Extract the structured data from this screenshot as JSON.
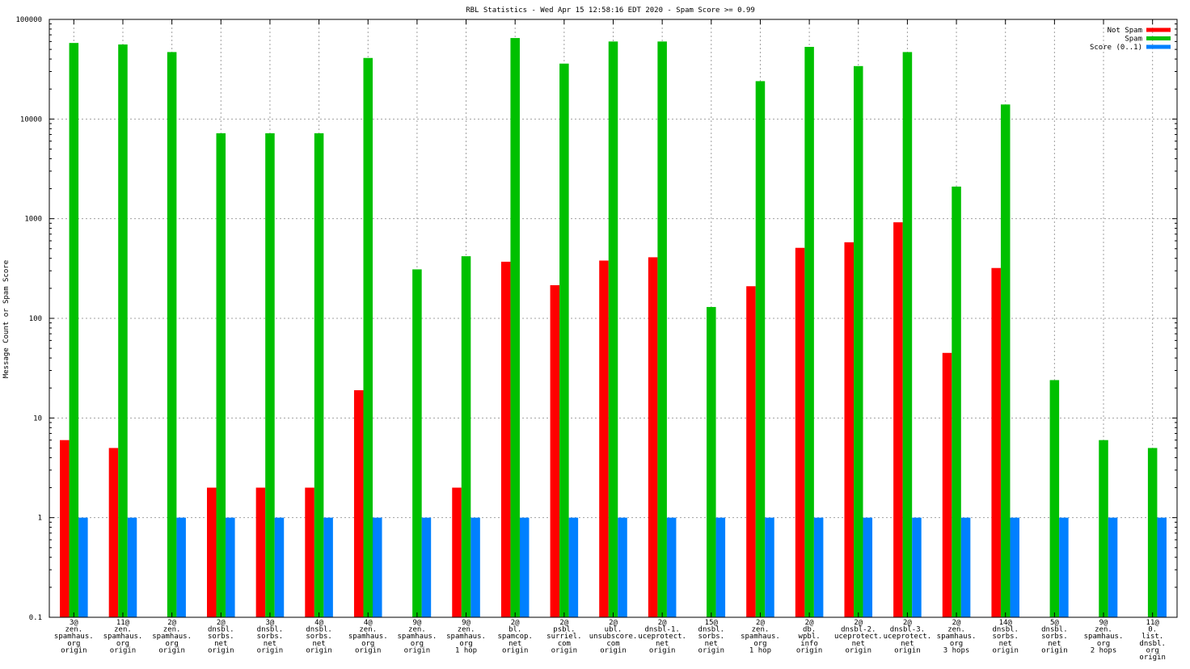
{
  "chart_data": {
    "type": "bar",
    "title": "RBL Statistics - Wed Apr 15 12:58:16 EDT 2020 - Spam Score >= 0.99",
    "xlabel": "",
    "ylabel": "Message Count or Spam Score",
    "yscale": "log",
    "ylim": [
      0.1,
      100000
    ],
    "yticks": [
      {
        "value": 0.1,
        "label": "0.1"
      },
      {
        "value": 1,
        "label": "1"
      },
      {
        "value": 10,
        "label": "10"
      },
      {
        "value": 100,
        "label": "100"
      },
      {
        "value": 1000,
        "label": "1000"
      },
      {
        "value": 10000,
        "label": "10000"
      },
      {
        "value": 100000,
        "label": "100000"
      }
    ],
    "grid": true,
    "legend_position": "top-right",
    "categories": [
      [
        "3@",
        "zen.",
        "spamhaus.",
        "org",
        "origin"
      ],
      [
        "11@",
        "zen.",
        "spamhaus.",
        "org",
        "origin"
      ],
      [
        "2@",
        "zen.",
        "spamhaus.",
        "org",
        "origin"
      ],
      [
        "2@",
        "dnsbl.",
        "sorbs.",
        "net",
        "origin"
      ],
      [
        "3@",
        "dnsbl.",
        "sorbs.",
        "net",
        "origin"
      ],
      [
        "4@",
        "dnsbl.",
        "sorbs.",
        "net",
        "origin"
      ],
      [
        "4@",
        "zen.",
        "spamhaus.",
        "org",
        "origin"
      ],
      [
        "9@",
        "zen.",
        "spamhaus.",
        "org",
        "origin"
      ],
      [
        "9@",
        "zen.",
        "spamhaus.",
        "org",
        "1 hop"
      ],
      [
        "2@",
        "bl.",
        "spamcop.",
        "net",
        "origin"
      ],
      [
        "2@",
        "psbl.",
        "surriel.",
        "com",
        "origin"
      ],
      [
        "2@",
        "ubl.",
        "unsubscore.",
        "com",
        "origin"
      ],
      [
        "2@",
        "dnsbl-1.",
        "uceprotect.",
        "net",
        "origin"
      ],
      [
        "15@",
        "dnsbl.",
        "sorbs.",
        "net",
        "origin"
      ],
      [
        "2@",
        "zen.",
        "spamhaus.",
        "org",
        "1 hop"
      ],
      [
        "2@",
        "db.",
        "wpbl.",
        "info",
        "origin"
      ],
      [
        "2@",
        "dnsbl-2.",
        "uceprotect.",
        "net",
        "origin"
      ],
      [
        "2@",
        "dnsbl-3.",
        "uceprotect.",
        "net",
        "origin"
      ],
      [
        "2@",
        "zen.",
        "spamhaus.",
        "org",
        "3 hops"
      ],
      [
        "14@",
        "dnsbl.",
        "sorbs.",
        "net",
        "origin"
      ],
      [
        "5@",
        "dnsbl.",
        "sorbs.",
        "net",
        "origin"
      ],
      [
        "9@",
        "zen.",
        "spamhaus.",
        "org",
        "2 hops"
      ],
      [
        "11@",
        "0.",
        "list.",
        "dnsbl.",
        "org",
        "origin"
      ]
    ],
    "series": [
      {
        "name": "Not Spam",
        "color": "#ff0000",
        "values": [
          6,
          5,
          null,
          2,
          2,
          2,
          19,
          null,
          2,
          370,
          215,
          380,
          410,
          null,
          210,
          510,
          580,
          920,
          45,
          320,
          null,
          null,
          null
        ]
      },
      {
        "name": "Spam",
        "color": "#00c000",
        "values": [
          58000,
          56000,
          47000,
          7200,
          7200,
          7200,
          41000,
          310,
          420,
          65000,
          36000,
          60000,
          60000,
          130,
          24000,
          53000,
          34000,
          47000,
          2100,
          14000,
          24,
          6,
          5
        ]
      },
      {
        "name": "Score (0..1)",
        "color": "#0080ff",
        "values": [
          1,
          1,
          1,
          1,
          1,
          1,
          1,
          1,
          1,
          1,
          1,
          1,
          1,
          1,
          1,
          1,
          1,
          1,
          1,
          1,
          1,
          1,
          1
        ]
      }
    ]
  }
}
